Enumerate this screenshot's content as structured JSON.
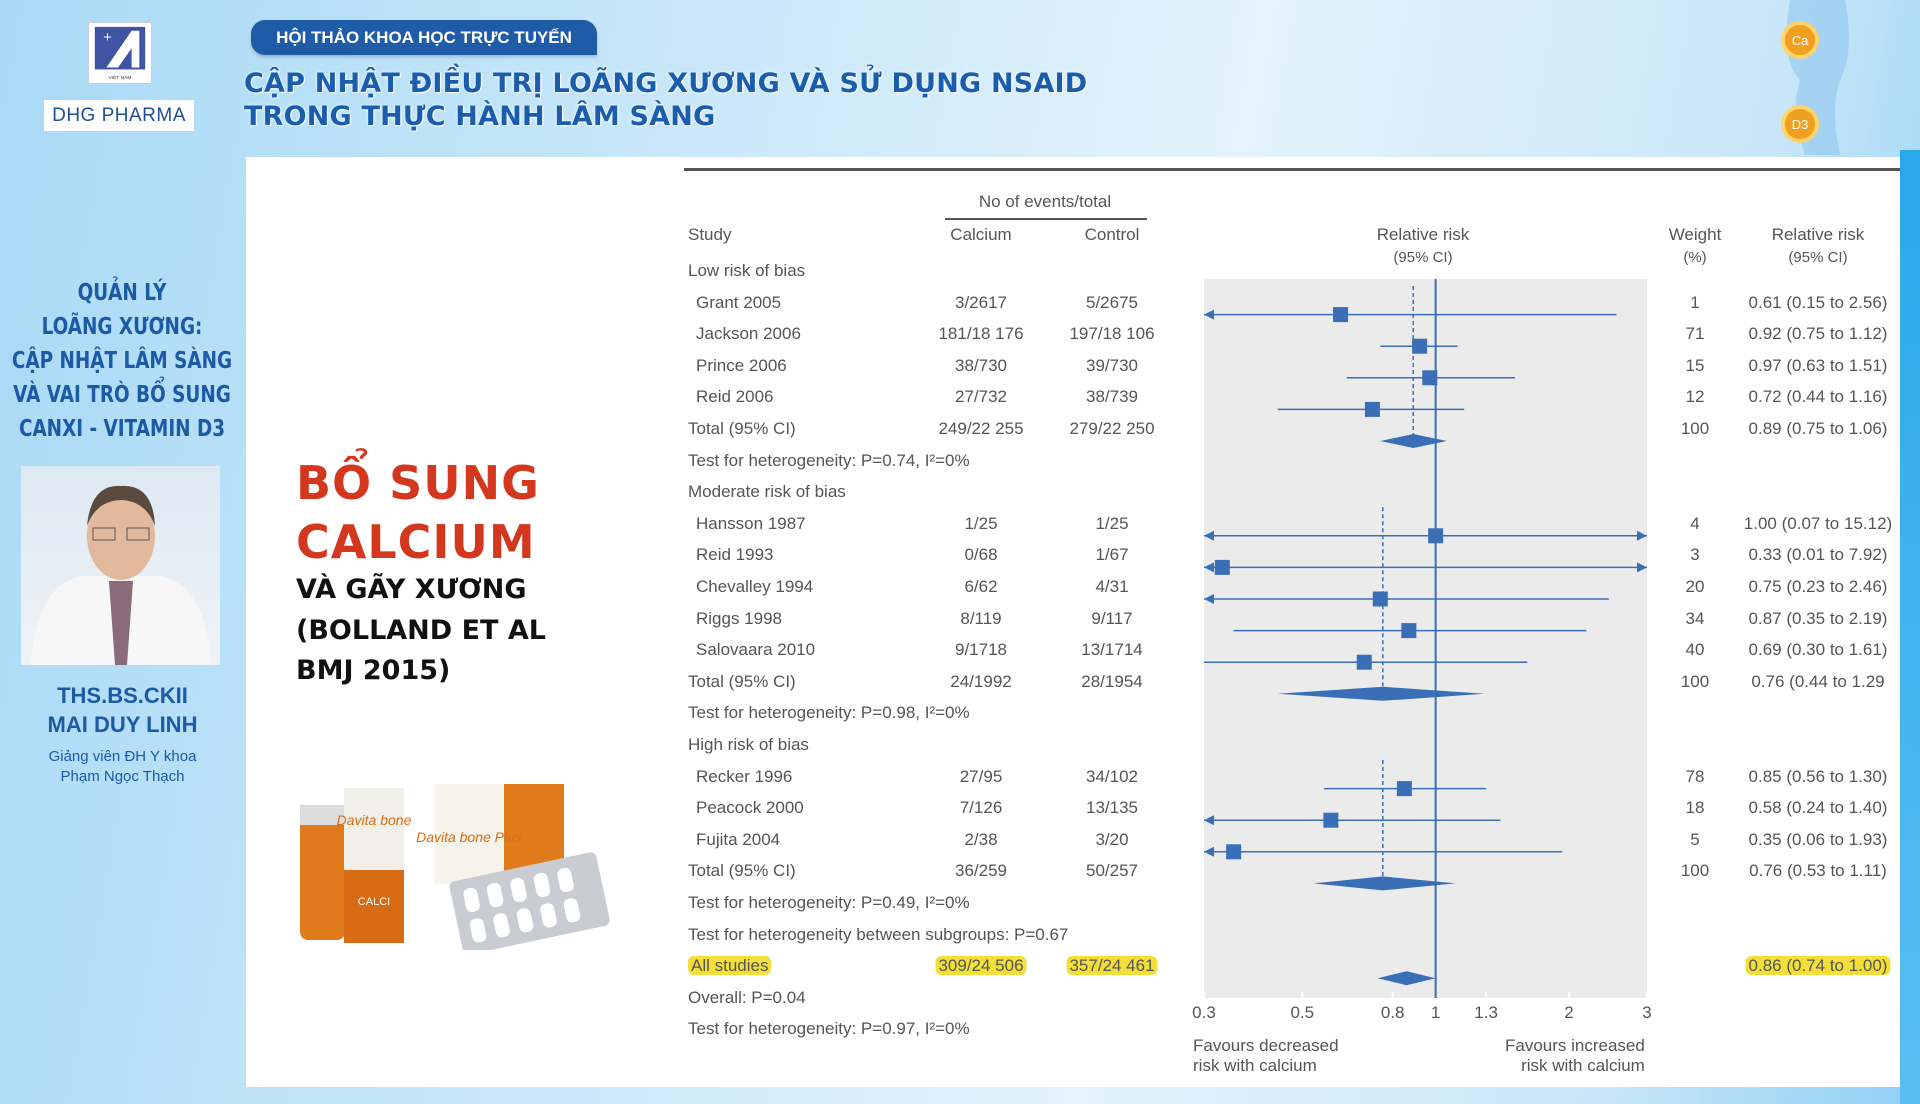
{
  "header": {
    "logo_text": "VIỆT NAM",
    "brand": "DHG PHARMA",
    "badge": "HỘI THẢO KHOA HỌC TRỰC TUYẾN",
    "title_lines": [
      "CẬP NHẬT ĐIỀU TRỊ LOÃNG XƯƠNG VÀ SỬ DỤNG NSAID",
      "TRONG THỰC HÀNH LÂM SÀNG"
    ],
    "deco_labels": [
      "Ca",
      "D3"
    ]
  },
  "sidebar": {
    "title_lines": [
      "QUẢN LÝ",
      "LOÃNG XƯƠNG:",
      "CẬP NHẬT LÂM SÀNG",
      "VÀ VAI TRÒ BỔ SUNG",
      "CANXI - VITAMIN D3"
    ],
    "name_lines": [
      "THS.BS.CKII",
      "MAI DUY LINH"
    ],
    "affiliation_lines": [
      "Giảng viên ĐH Y khoa",
      "Phạm Ngọc Thạch"
    ]
  },
  "slide": {
    "red_lines": [
      "BỔ SUNG",
      "CALCIUM"
    ],
    "black_lines": [
      "VÀ GÃY XƯƠNG",
      "(BOLLAND ET AL",
      "BMJ 2015)"
    ],
    "products": [
      "Davita bone",
      "Davita bone Plus",
      "CALCI"
    ]
  },
  "colors": {
    "accent": "#1f5ca8",
    "red": "#d3371d",
    "marker": "#3a6fb8",
    "highlight": "#f3df3a",
    "plot_bg": "#ebebeb"
  },
  "chart_data": {
    "type": "forest",
    "headers": {
      "events": "No of events/total",
      "study": "Study",
      "calcium": "Calcium",
      "control": "Control",
      "rr": "Relative risk",
      "rr_ci": "(95% CI)",
      "weight": "Weight",
      "weight_unit": "(%)",
      "rr2": "Relative risk",
      "rr2_ci": "(95% CI)"
    },
    "x_scale": "log",
    "xlim": [
      0.3,
      3
    ],
    "ticks": [
      "0.3",
      "0.5",
      "0.8",
      "1",
      "1.3",
      "2",
      "3"
    ],
    "xlabel_left": [
      "Favours decreased",
      "risk with calcium"
    ],
    "xlabel_right": [
      "Favours increased",
      "risk with calcium"
    ],
    "rows": [
      {
        "kind": "group",
        "label": "Low risk of bias"
      },
      {
        "kind": "study",
        "label": "Grant 2005",
        "calcium": "3/2617",
        "control": "5/2675",
        "weight": "1",
        "ci": "0.61 (0.15 to 2.56)",
        "rr": 0.61,
        "lo": 0.15,
        "hi": 2.56
      },
      {
        "kind": "study",
        "label": "Jackson 2006",
        "calcium": "181/18 176",
        "control": "197/18 106",
        "weight": "71",
        "ci": "0.92 (0.75 to 1.12)",
        "rr": 0.92,
        "lo": 0.75,
        "hi": 1.12
      },
      {
        "kind": "study",
        "label": "Prince 2006",
        "calcium": "38/730",
        "control": "39/730",
        "weight": "15",
        "ci": "0.97 (0.63 to 1.51)",
        "rr": 0.97,
        "lo": 0.63,
        "hi": 1.51
      },
      {
        "kind": "study",
        "label": "Reid 2006",
        "calcium": "27/732",
        "control": "38/739",
        "weight": "12",
        "ci": "0.72 (0.44 to 1.16)",
        "rr": 0.72,
        "lo": 0.44,
        "hi": 1.16
      },
      {
        "kind": "total",
        "label": "Total (95% CI)",
        "calcium": "249/22 255",
        "control": "279/22 250",
        "weight": "100",
        "ci": "0.89 (0.75 to 1.06)",
        "rr": 0.89,
        "lo": 0.75,
        "hi": 1.06
      },
      {
        "kind": "text",
        "label": "Test for heterogeneity: P=0.74, I²=0%"
      },
      {
        "kind": "group",
        "label": "Moderate risk of bias"
      },
      {
        "kind": "study",
        "label": "Hansson 1987",
        "calcium": "1/25",
        "control": "1/25",
        "weight": "4",
        "ci": "1.00 (0.07 to 15.12)",
        "rr": 1.0,
        "lo": 0.07,
        "hi": 15.12
      },
      {
        "kind": "study",
        "label": "Reid 1993",
        "calcium": "0/68",
        "control": "1/67",
        "weight": "3",
        "ci": "0.33 (0.01 to 7.92)",
        "rr": 0.33,
        "lo": 0.01,
        "hi": 7.92
      },
      {
        "kind": "study",
        "label": "Chevalley 1994",
        "calcium": "6/62",
        "control": "4/31",
        "weight": "20",
        "ci": "0.75 (0.23 to 2.46)",
        "rr": 0.75,
        "lo": 0.23,
        "hi": 2.46
      },
      {
        "kind": "study",
        "label": "Riggs 1998",
        "calcium": "8/119",
        "control": "9/117",
        "weight": "34",
        "ci": "0.87 (0.35 to 2.19)",
        "rr": 0.87,
        "lo": 0.35,
        "hi": 2.19
      },
      {
        "kind": "study",
        "label": "Salovaara 2010",
        "calcium": "9/1718",
        "control": "13/1714",
        "weight": "40",
        "ci": "0.69 (0.30 to 1.61)",
        "rr": 0.69,
        "lo": 0.3,
        "hi": 1.61
      },
      {
        "kind": "total",
        "label": "Total (95% CI)",
        "calcium": "24/1992",
        "control": "28/1954",
        "weight": "100",
        "ci": "0.76 (0.44 to 1.29",
        "rr": 0.76,
        "lo": 0.44,
        "hi": 1.29
      },
      {
        "kind": "text",
        "label": "Test for heterogeneity: P=0.98, I²=0%"
      },
      {
        "kind": "group",
        "label": "High risk of bias"
      },
      {
        "kind": "study",
        "label": "Recker 1996",
        "calcium": "27/95",
        "control": "34/102",
        "weight": "78",
        "ci": "0.85 (0.56 to 1.30)",
        "rr": 0.85,
        "lo": 0.56,
        "hi": 1.3
      },
      {
        "kind": "study",
        "label": "Peacock 2000",
        "calcium": "7/126",
        "control": "13/135",
        "weight": "18",
        "ci": "0.58 (0.24 to 1.40)",
        "rr": 0.58,
        "lo": 0.24,
        "hi": 1.4
      },
      {
        "kind": "study",
        "label": "Fujita 2004",
        "calcium": "2/38",
        "control": "3/20",
        "weight": "5",
        "ci": "0.35 (0.06 to 1.93)",
        "rr": 0.35,
        "lo": 0.06,
        "hi": 1.93
      },
      {
        "kind": "total",
        "label": "Total (95% CI)",
        "calcium": "36/259",
        "control": "50/257",
        "weight": "100",
        "ci": "0.76 (0.53 to 1.11)",
        "rr": 0.76,
        "lo": 0.53,
        "hi": 1.11
      },
      {
        "kind": "text",
        "label": "Test for heterogeneity: P=0.49, I²=0%"
      },
      {
        "kind": "text",
        "label": "Test for heterogeneity between subgroups: P=0.67"
      },
      {
        "kind": "all",
        "label": "All studies",
        "calcium": "309/24 506",
        "control": "357/24 461",
        "weight": "",
        "ci": "0.86 (0.74 to 1.00)",
        "rr": 0.86,
        "lo": 0.74,
        "hi": 1.0
      },
      {
        "kind": "text",
        "label": "Overall: P=0.04"
      },
      {
        "kind": "text",
        "label": "Test for heterogeneity: P=0.97, I²=0%"
      }
    ]
  }
}
